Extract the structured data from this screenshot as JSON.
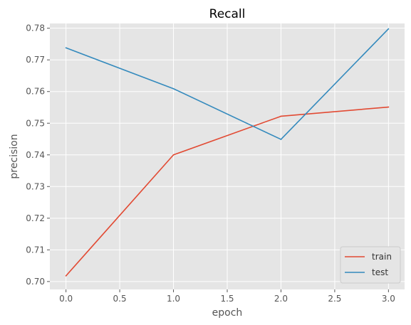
{
  "chart_data": {
    "type": "line",
    "title": "Recall",
    "xlabel": "epoch",
    "ylabel": "precision",
    "x": [
      0,
      1,
      2,
      3
    ],
    "xlim": [
      -0.15,
      3.15
    ],
    "ylim": [
      0.6975,
      0.7815
    ],
    "xticks": [
      0.0,
      0.5,
      1.0,
      1.5,
      2.0,
      2.5,
      3.0
    ],
    "xtick_labels": [
      "0.0",
      "0.5",
      "1.0",
      "1.5",
      "2.0",
      "2.5",
      "3.0"
    ],
    "yticks": [
      0.7,
      0.71,
      0.72,
      0.73,
      0.74,
      0.75,
      0.76,
      0.77,
      0.78
    ],
    "ytick_labels": [
      "0.70",
      "0.71",
      "0.72",
      "0.73",
      "0.74",
      "0.75",
      "0.76",
      "0.77",
      "0.78"
    ],
    "grid": true,
    "legend_position": "lower-right",
    "series": [
      {
        "name": "train",
        "color": "#E24A33",
        "values": [
          0.7018,
          0.74,
          0.7522,
          0.7551
        ]
      },
      {
        "name": "test",
        "color": "#348ABD",
        "values": [
          0.7738,
          0.7609,
          0.7449,
          0.7798
        ]
      }
    ],
    "colors": {
      "plot_background": "#E5E5E5",
      "grid": "#FFFFFF"
    }
  }
}
